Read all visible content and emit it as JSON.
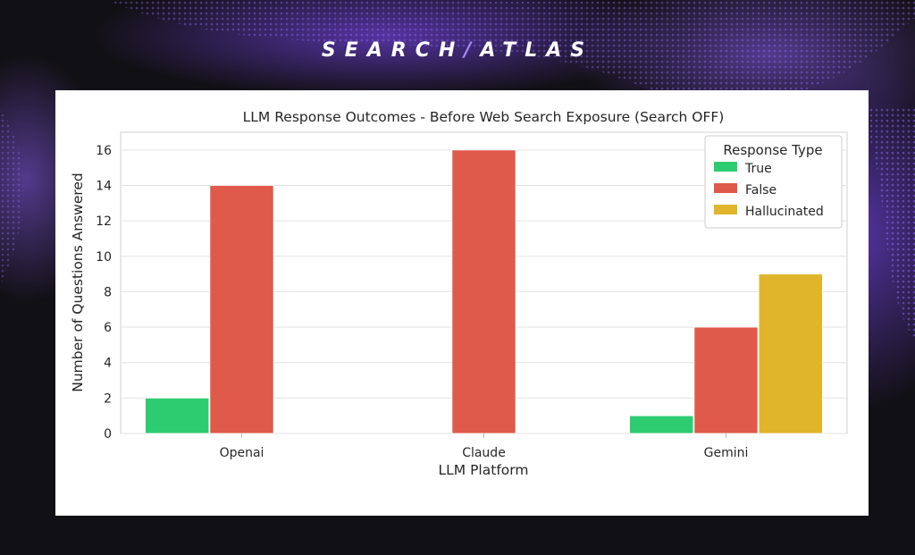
{
  "brand": {
    "left": "SEARCH",
    "slash": "/",
    "right": "ATLAS"
  },
  "colors": {
    "true": "#2ecc71",
    "false": "#e05a4c",
    "hallucinated": "#e0b52b",
    "background": "#111014",
    "accent": "#7a4fd4"
  },
  "chart_data": {
    "type": "bar",
    "title": "LLM Response Outcomes - Before Web Search Exposure (Search OFF)",
    "xlabel": "LLM Platform",
    "ylabel": "Number of Questions Answered",
    "categories": [
      "Openai",
      "Claude",
      "Gemini"
    ],
    "series": [
      {
        "name": "True",
        "values": [
          2,
          0,
          1
        ],
        "color": "#2ecc71"
      },
      {
        "name": "False",
        "values": [
          14,
          16,
          6
        ],
        "color": "#e05a4c"
      },
      {
        "name": "Hallucinated",
        "values": [
          0,
          0,
          9
        ],
        "color": "#e0b52b"
      }
    ],
    "yticks": [
      "0",
      "2",
      "4",
      "6",
      "8",
      "10",
      "12",
      "14",
      "16"
    ],
    "ylim": [
      0,
      17
    ],
    "grid": true,
    "legend": {
      "title": "Response Type",
      "placement": "top-right"
    }
  }
}
